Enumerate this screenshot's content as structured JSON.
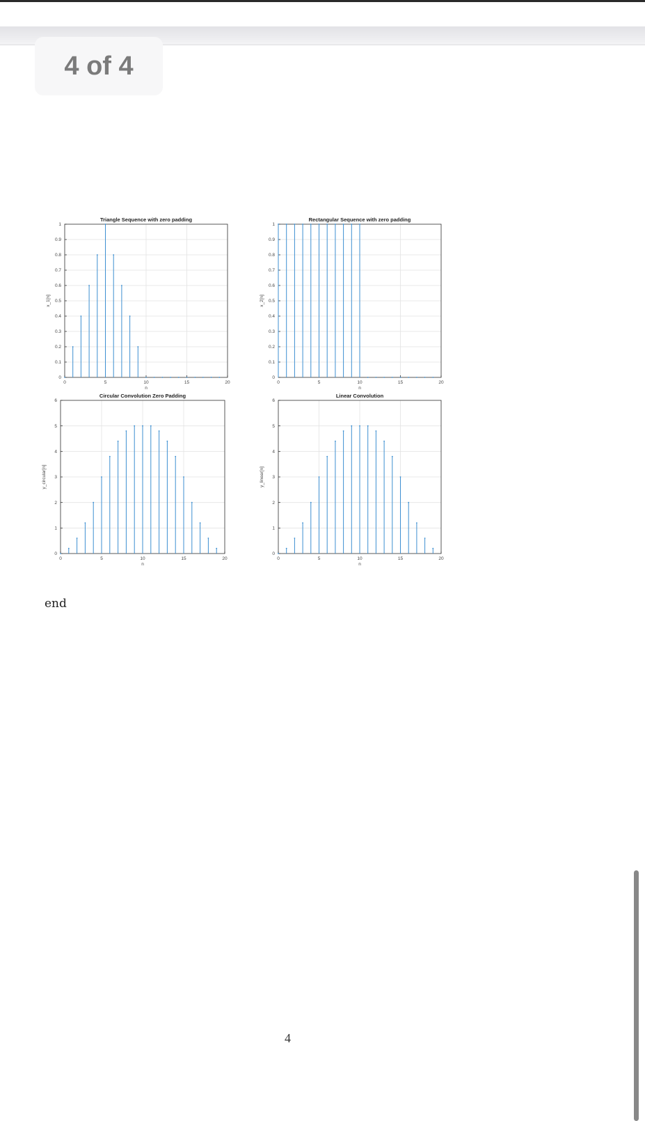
{
  "viewer": {
    "page_indicator": "4 of 4",
    "footer_page_number": "4",
    "code_trailing_line": "end"
  },
  "colors": {
    "stem": "#3d8fd1",
    "axis": "#333333",
    "grid": "#e3e3e3"
  },
  "chart_data": [
    {
      "type": "stem",
      "title": "Triangle Sequence with zero padding",
      "xlabel": "n",
      "ylabel": "x_1[n]",
      "xlim": [
        0,
        20
      ],
      "ylim": [
        0,
        1
      ],
      "xticks": [
        0,
        5,
        10,
        15,
        20
      ],
      "yticks": [
        0,
        0.1,
        0.2,
        0.3,
        0.4,
        0.5,
        0.6,
        0.7,
        0.8,
        0.9,
        1
      ],
      "grid": true,
      "x": [
        0,
        1,
        2,
        3,
        4,
        5,
        6,
        7,
        8,
        9,
        10,
        11,
        12,
        13,
        14,
        15,
        16,
        17,
        18,
        19
      ],
      "y": [
        0,
        0.2,
        0.4,
        0.6,
        0.8,
        1,
        0.8,
        0.6,
        0.4,
        0.2,
        0,
        0,
        0,
        0,
        0,
        0,
        0,
        0,
        0,
        0
      ]
    },
    {
      "type": "stem",
      "title": "Rectangular Sequence with zero padding",
      "xlabel": "n",
      "ylabel": "x_2[n]",
      "xlim": [
        0,
        20
      ],
      "ylim": [
        0,
        1
      ],
      "xticks": [
        0,
        5,
        10,
        15,
        20
      ],
      "yticks": [
        0,
        0.1,
        0.2,
        0.3,
        0.4,
        0.5,
        0.6,
        0.7,
        0.8,
        0.9,
        1
      ],
      "grid": true,
      "x": [
        0,
        1,
        2,
        3,
        4,
        5,
        6,
        7,
        8,
        9,
        10,
        11,
        12,
        13,
        14,
        15,
        16,
        17,
        18,
        19
      ],
      "y": [
        1,
        1,
        1,
        1,
        1,
        1,
        1,
        1,
        1,
        1,
        1,
        0,
        0,
        0,
        0,
        0,
        0,
        0,
        0,
        0
      ]
    },
    {
      "type": "stem",
      "title": "Circular Convolution Zero Padding",
      "xlabel": "n",
      "ylabel": "y_circular[n]",
      "xlim": [
        0,
        20
      ],
      "ylim": [
        0,
        6
      ],
      "xticks": [
        0,
        5,
        10,
        15,
        20
      ],
      "yticks": [
        0,
        1,
        2,
        3,
        4,
        5,
        6
      ],
      "grid": true,
      "x": [
        0,
        1,
        2,
        3,
        4,
        5,
        6,
        7,
        8,
        9,
        10,
        11,
        12,
        13,
        14,
        15,
        16,
        17,
        18,
        19
      ],
      "y": [
        0,
        0.2,
        0.6,
        1.2,
        2,
        3,
        3.8,
        4.4,
        4.8,
        5,
        5,
        5,
        4.8,
        4.4,
        3.8,
        3,
        2,
        1.2,
        0.6,
        0.2
      ]
    },
    {
      "type": "stem",
      "title": "Linear Convolution",
      "xlabel": "n",
      "ylabel": "y_linear[n]",
      "xlim": [
        0,
        20
      ],
      "ylim": [
        0,
        6
      ],
      "xticks": [
        0,
        5,
        10,
        15,
        20
      ],
      "yticks": [
        0,
        1,
        2,
        3,
        4,
        5,
        6
      ],
      "grid": true,
      "x": [
        0,
        1,
        2,
        3,
        4,
        5,
        6,
        7,
        8,
        9,
        10,
        11,
        12,
        13,
        14,
        15,
        16,
        17,
        18,
        19
      ],
      "y": [
        0,
        0.2,
        0.6,
        1.2,
        2,
        3,
        3.8,
        4.4,
        4.8,
        5,
        5,
        5,
        4.8,
        4.4,
        3.8,
        3,
        2,
        1.2,
        0.6,
        0.2
      ]
    }
  ]
}
